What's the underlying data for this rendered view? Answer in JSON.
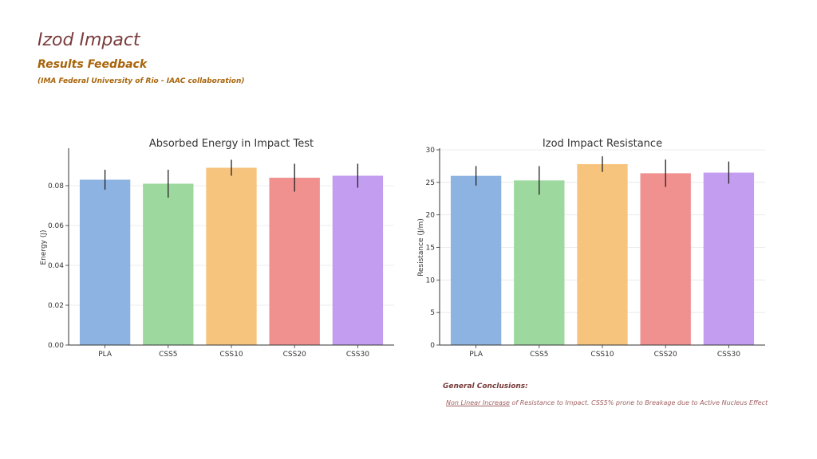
{
  "header": {
    "title": "Izod Impact",
    "subtitle": "Results Feedback",
    "collab": "(IMA Federal University of Rio - IAAC collaboration)"
  },
  "conclusions": {
    "heading": "General Conclusions:",
    "highlight": "Non Linear Increase",
    "rest": " of Resistance to Impact. CSS5% prone to Breakage due to Active Nucleus Effect"
  },
  "colors": {
    "PLA": "#8db3e2",
    "CSS5": "#9dd89f",
    "CSS10": "#f7c47e",
    "CSS20": "#f09190",
    "CSS30": "#c39ef0"
  },
  "chart_data": [
    {
      "type": "bar",
      "title": "Absorbed Energy in Impact Test",
      "xlabel": "",
      "ylabel": "Energy (J)",
      "categories": [
        "PLA",
        "CSS5",
        "CSS10",
        "CSS20",
        "CSS30"
      ],
      "values": [
        0.083,
        0.081,
        0.089,
        0.084,
        0.085
      ],
      "errors": [
        0.005,
        0.007,
        0.004,
        0.007,
        0.006
      ],
      "ylim": [
        0,
        0.098
      ],
      "yticks": [
        "0.00",
        "0.02",
        "0.04",
        "0.06",
        "0.08"
      ],
      "ytick_values": [
        0,
        0.02,
        0.04,
        0.06,
        0.08
      ],
      "grid": true
    },
    {
      "type": "bar",
      "title": "Izod Impact Resistance",
      "xlabel": "",
      "ylabel": "Resistance (J/m)",
      "categories": [
        "PLA",
        "CSS5",
        "CSS10",
        "CSS20",
        "CSS30"
      ],
      "values": [
        26.0,
        25.3,
        27.8,
        26.4,
        26.5
      ],
      "errors": [
        1.5,
        2.2,
        1.2,
        2.1,
        1.7
      ],
      "ylim": [
        0,
        30
      ],
      "yticks": [
        "0",
        "5",
        "10",
        "15",
        "20",
        "25",
        "30"
      ],
      "ytick_values": [
        0,
        5,
        10,
        15,
        20,
        25,
        30
      ],
      "grid": true
    }
  ]
}
